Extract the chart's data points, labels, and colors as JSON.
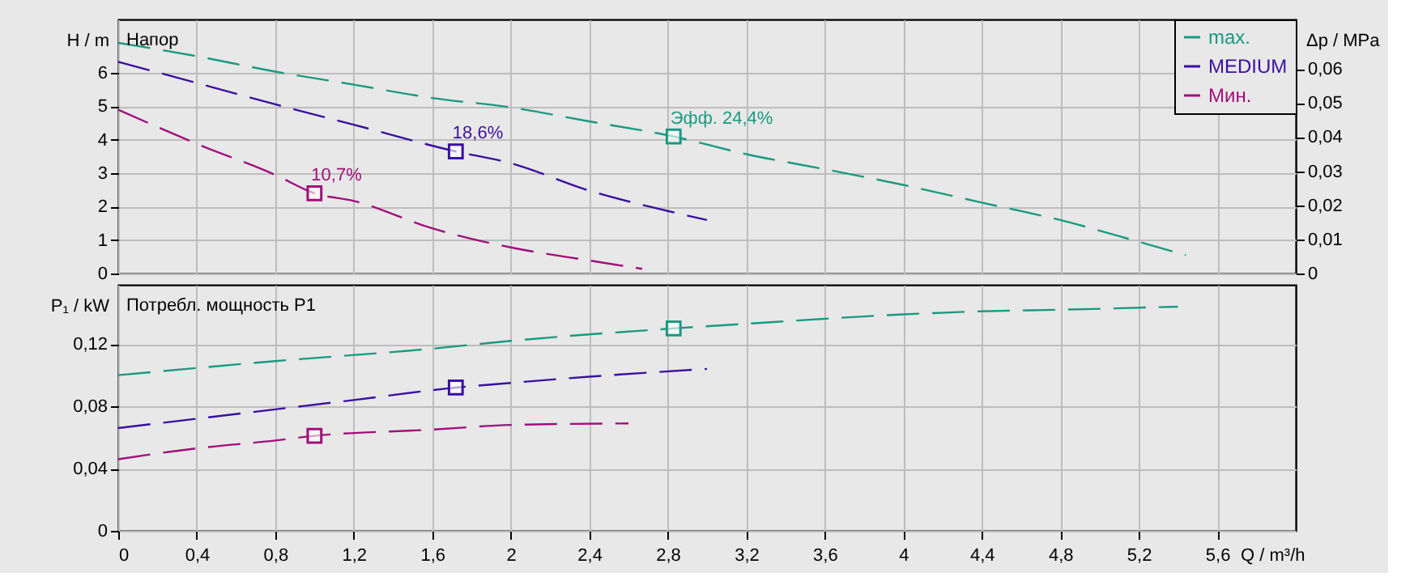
{
  "chart_data": [
    {
      "type": "line",
      "title": "Напор",
      "ylabel": "H / m",
      "y2label": "Δp / MPa",
      "xlim": [
        0,
        6.0
      ],
      "ylim": [
        0,
        7.6
      ],
      "yticks": [
        0,
        1,
        2,
        3,
        4,
        5,
        6
      ],
      "y2lim": [
        0,
        0.0745
      ],
      "y2ticks": [
        0,
        {
          "value": 0.01,
          "label": "0,01"
        },
        {
          "value": 0.02,
          "label": "0,02"
        },
        {
          "value": 0.03,
          "label": "0,03"
        },
        {
          "value": 0.04,
          "label": "0,04"
        },
        {
          "value": 0.05,
          "label": "0,05"
        },
        {
          "value": 0.06,
          "label": "0,06"
        }
      ],
      "tick_labels": "y",
      "grid": true,
      "legend": "top right",
      "line_style": "dashed",
      "series": [
        {
          "name": "max.",
          "color": "#1a9a80",
          "x": [
            0,
            0.4,
            0.8,
            1.2,
            1.6,
            2.0,
            2.4,
            2.83,
            3.2,
            3.6,
            4.0,
            4.4,
            4.8,
            5.2,
            5.44
          ],
          "values": [
            6.9,
            6.5,
            6.04,
            5.65,
            5.25,
            4.97,
            4.55,
            4.1,
            3.57,
            3.12,
            2.65,
            2.12,
            1.6,
            0.95,
            0.55
          ]
        },
        {
          "name": "MEDIUM",
          "color": "#3a10a0",
          "x": [
            0,
            0.4,
            0.8,
            1.2,
            1.72,
            2.0,
            2.4,
            2.8,
            3.0
          ],
          "values": [
            6.33,
            5.7,
            5.06,
            4.45,
            3.65,
            3.3,
            2.48,
            1.87,
            1.6
          ]
        },
        {
          "name": "Мин.",
          "color": "#a0107a",
          "x": [
            0,
            0.4,
            0.8,
            1.0,
            1.2,
            1.6,
            2.0,
            2.4,
            2.67
          ],
          "values": [
            4.9,
            3.88,
            2.95,
            2.4,
            2.17,
            1.35,
            0.78,
            0.39,
            0.14
          ]
        },
        {
          "type": "scatter",
          "marker": "square",
          "x": [
            2.83,
            1.72,
            1.0
          ],
          "values": [
            4.1,
            3.65,
            2.4
          ],
          "colors": [
            "#1a9a80",
            "#3a10a0",
            "#a0107a"
          ]
        }
      ],
      "annotations": [
        {
          "text": "Эфф.  24,4%",
          "x": 2.83,
          "y": 4.1
        },
        {
          "text": "18,6%",
          "x": 1.72,
          "y": 3.65
        },
        {
          "text": "10,7%",
          "x": 1.0,
          "y": 2.4
        }
      ]
    },
    {
      "type": "line",
      "title": "Потребл. мощность P1",
      "ylabel": "P₁ / kW",
      "xlabel": "Q / m³/h",
      "xlim": [
        0,
        6.0
      ],
      "xticks": [
        0,
        {
          "value": 0.4,
          "label": "0,4"
        },
        {
          "value": 0.8,
          "label": "0,8"
        },
        {
          "value": 1.2,
          "label": "1,2"
        },
        {
          "value": 1.6,
          "label": "1,6"
        },
        2,
        {
          "value": 2.4,
          "label": "2,4"
        },
        {
          "value": 2.8,
          "label": "2,8"
        },
        {
          "value": 3.2,
          "label": "3,2"
        },
        {
          "value": 3.6,
          "label": "3,6"
        },
        4,
        {
          "value": 4.4,
          "label": "4,4"
        },
        {
          "value": 4.8,
          "label": "4,8"
        },
        {
          "value": 5.2,
          "label": "5,2"
        },
        {
          "value": 5.6,
          "label": "5,6"
        }
      ],
      "ylim": [
        0,
        0.158
      ],
      "yticks": [
        0,
        {
          "value": 0.04,
          "label": "0,04"
        },
        {
          "value": 0.08,
          "label": "0,08"
        },
        {
          "value": 0.12,
          "label": "0,12"
        }
      ],
      "grid": true,
      "line_style": "dashed",
      "series": [
        {
          "color": "#1a9a80",
          "x": [
            0,
            0.8,
            1.6,
            2.0,
            2.83,
            3.2,
            4.0,
            4.4,
            4.8,
            5.4
          ],
          "values": [
            0.1,
            0.109,
            0.117,
            0.122,
            0.13,
            0.133,
            0.139,
            0.141,
            0.142,
            0.144
          ]
        },
        {
          "color": "#3a10a0",
          "x": [
            0,
            0.8,
            1.2,
            1.72,
            2.0,
            2.4,
            3.0
          ],
          "values": [
            0.066,
            0.078,
            0.084,
            0.092,
            0.095,
            0.099,
            0.104
          ]
        },
        {
          "color": "#a0107a",
          "x": [
            0,
            0.4,
            0.8,
            1.0,
            1.6,
            2.0,
            2.6
          ],
          "values": [
            0.046,
            0.053,
            0.058,
            0.061,
            0.065,
            0.068,
            0.069
          ]
        },
        {
          "type": "scatter",
          "marker": "square",
          "x": [
            2.83,
            1.72,
            1.0
          ],
          "values": [
            0.13,
            0.092,
            0.061
          ],
          "colors": [
            "#1a9a80",
            "#3a10a0",
            "#a0107a"
          ]
        }
      ]
    }
  ]
}
